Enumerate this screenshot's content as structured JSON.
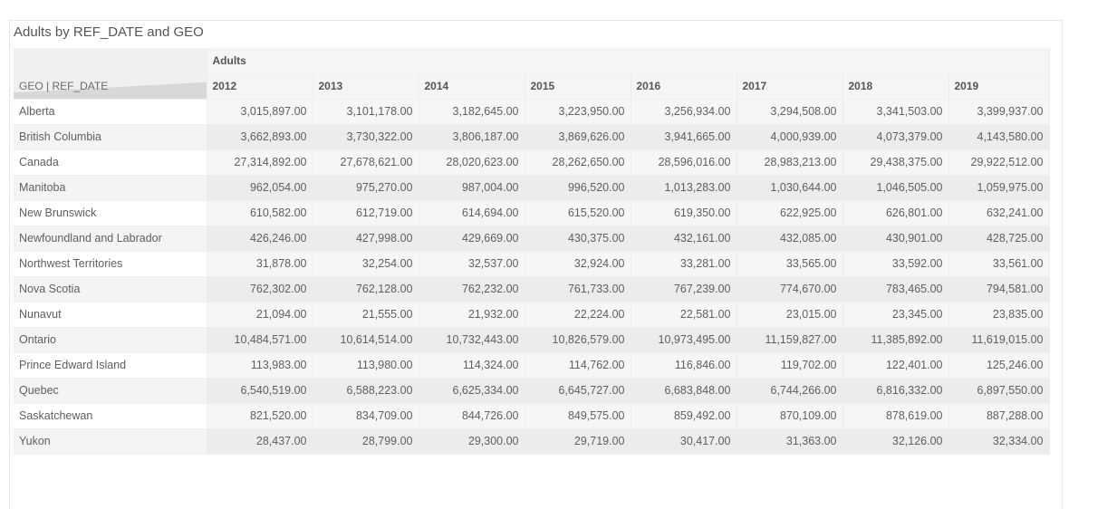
{
  "title": "Adults by REF_DATE and GEO",
  "chart_data": {
    "type": "table",
    "title": "Adults by REF_DATE and GEO",
    "measure": "Adults",
    "corner_label": "GEO | REF_DATE",
    "columns": [
      "2012",
      "2013",
      "2014",
      "2015",
      "2016",
      "2017",
      "2018",
      "2019"
    ],
    "rows": [
      {
        "geo": "Alberta",
        "values": [
          "3,015,897.00",
          "3,101,178.00",
          "3,182,645.00",
          "3,223,950.00",
          "3,256,934.00",
          "3,294,508.00",
          "3,341,503.00",
          "3,399,937.00"
        ]
      },
      {
        "geo": "British Columbia",
        "values": [
          "3,662,893.00",
          "3,730,322.00",
          "3,806,187.00",
          "3,869,626.00",
          "3,941,665.00",
          "4,000,939.00",
          "4,073,379.00",
          "4,143,580.00"
        ]
      },
      {
        "geo": "Canada",
        "values": [
          "27,314,892.00",
          "27,678,621.00",
          "28,020,623.00",
          "28,262,650.00",
          "28,596,016.00",
          "28,983,213.00",
          "29,438,375.00",
          "29,922,512.00"
        ]
      },
      {
        "geo": "Manitoba",
        "values": [
          "962,054.00",
          "975,270.00",
          "987,004.00",
          "996,520.00",
          "1,013,283.00",
          "1,030,644.00",
          "1,046,505.00",
          "1,059,975.00"
        ]
      },
      {
        "geo": "New Brunswick",
        "values": [
          "610,582.00",
          "612,719.00",
          "614,694.00",
          "615,520.00",
          "619,350.00",
          "622,925.00",
          "626,801.00",
          "632,241.00"
        ]
      },
      {
        "geo": "Newfoundland and Labrador",
        "values": [
          "426,246.00",
          "427,998.00",
          "429,669.00",
          "430,375.00",
          "432,161.00",
          "432,085.00",
          "430,901.00",
          "428,725.00"
        ]
      },
      {
        "geo": "Northwest Territories",
        "values": [
          "31,878.00",
          "32,254.00",
          "32,537.00",
          "32,924.00",
          "33,281.00",
          "33,565.00",
          "33,592.00",
          "33,561.00"
        ]
      },
      {
        "geo": "Nova Scotia",
        "values": [
          "762,302.00",
          "762,128.00",
          "762,232.00",
          "761,733.00",
          "767,239.00",
          "774,670.00",
          "783,465.00",
          "794,581.00"
        ]
      },
      {
        "geo": "Nunavut",
        "values": [
          "21,094.00",
          "21,555.00",
          "21,932.00",
          "22,224.00",
          "22,581.00",
          "23,015.00",
          "23,345.00",
          "23,835.00"
        ]
      },
      {
        "geo": "Ontario",
        "values": [
          "10,484,571.00",
          "10,614,514.00",
          "10,732,443.00",
          "10,826,579.00",
          "10,973,495.00",
          "11,159,827.00",
          "11,385,892.00",
          "11,619,015.00"
        ]
      },
      {
        "geo": "Prince Edward Island",
        "values": [
          "113,983.00",
          "113,980.00",
          "114,324.00",
          "114,762.00",
          "116,846.00",
          "119,702.00",
          "122,401.00",
          "125,246.00"
        ]
      },
      {
        "geo": "Quebec",
        "values": [
          "6,540,519.00",
          "6,588,223.00",
          "6,625,334.00",
          "6,645,727.00",
          "6,683,848.00",
          "6,744,266.00",
          "6,816,332.00",
          "6,897,550.00"
        ]
      },
      {
        "geo": "Saskatchewan",
        "values": [
          "821,520.00",
          "834,709.00",
          "844,726.00",
          "849,575.00",
          "859,492.00",
          "870,109.00",
          "878,619.00",
          "887,288.00"
        ]
      },
      {
        "geo": "Yukon",
        "values": [
          "28,437.00",
          "28,799.00",
          "29,300.00",
          "29,719.00",
          "30,417.00",
          "31,363.00",
          "32,126.00",
          "32,334.00"
        ]
      }
    ]
  }
}
